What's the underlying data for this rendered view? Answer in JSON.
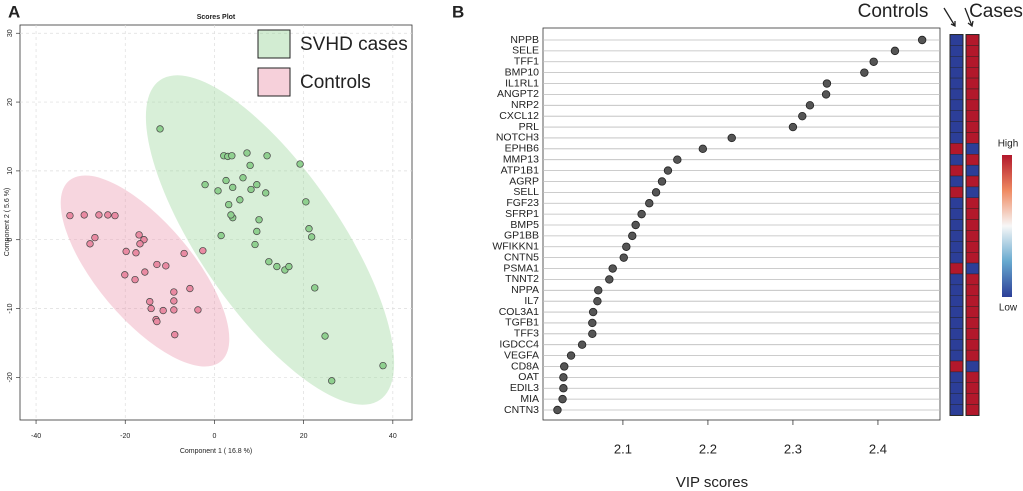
{
  "chart_data": [
    {
      "type": "scatter",
      "panel_label": "A",
      "title": "Scores Plot",
      "x_label": "Component 1 ( 16.8 %)",
      "y_label": "Component 2 ( 5.6 %)",
      "xlim": [
        -43.6,
        44.3
      ],
      "ylim": [
        -26.2,
        31.2
      ],
      "xticks": [
        -40,
        -20,
        0,
        20,
        40
      ],
      "yticks": [
        -20,
        -10,
        0,
        10,
        20,
        30
      ],
      "grid": true,
      "legend": "top-right",
      "series": [
        {
          "name": "SVHD cases",
          "color": "#8fd08f",
          "x": [
            -12.2,
            2.1,
            3.0,
            3.9,
            7.3,
            11.8,
            19.2,
            -2.1,
            6.4,
            8.0,
            2.6,
            4.1,
            8.2,
            9.5,
            0.8,
            5.7,
            11.5,
            3.2,
            4.1,
            10.0,
            20.5,
            21.2,
            21.8,
            3.7,
            9.5,
            9.1,
            1.5,
            12.2,
            14.0,
            15.8,
            16.7,
            22.5,
            24.8,
            26.3,
            37.8
          ],
          "values": [
            16.1,
            12.2,
            12.1,
            12.2,
            12.6,
            12.2,
            11.0,
            8.0,
            9.0,
            10.8,
            8.6,
            7.6,
            7.3,
            8.0,
            7.1,
            5.8,
            6.8,
            5.1,
            3.2,
            2.9,
            5.5,
            1.6,
            0.4,
            3.6,
            1.2,
            -0.7,
            0.6,
            -3.2,
            -3.9,
            -4.4,
            -3.9,
            -7.0,
            -14.0,
            -20.5,
            -18.3
          ]
        },
        {
          "name": "Controls",
          "color": "#e98aa2",
          "x": [
            -32.4,
            -29.2,
            -25.9,
            -23.9,
            -22.3,
            -26.8,
            -27.9,
            -16.9,
            -15.8,
            -16.7,
            -17.6,
            -19.8,
            -12.9,
            -6.8,
            -2.6,
            -10.9,
            -20.1,
            -15.6,
            -17.8,
            -14.5,
            -9.1,
            -9.1,
            -5.5,
            -13.1,
            -9.1,
            -14.2,
            -11.5,
            -3.7,
            -8.9,
            -12.9
          ],
          "values": [
            3.5,
            3.6,
            3.6,
            3.6,
            3.5,
            0.3,
            -0.6,
            0.7,
            0.0,
            -0.6,
            -1.9,
            -1.7,
            -3.6,
            -2.0,
            -1.6,
            -3.8,
            -5.1,
            -4.7,
            -5.8,
            -9.0,
            -7.6,
            -8.9,
            -7.1,
            -11.6,
            -10.2,
            -10.0,
            -10.3,
            -10.2,
            -13.8,
            -11.9
          ]
        }
      ]
    },
    {
      "type": "dot",
      "panel_label": "B",
      "x_label": "VIP scores",
      "color": "#555555",
      "categories": [
        "NPPB",
        "SELE",
        "TFF1",
        "BMP10",
        "IL1RL1",
        "ANGPT2",
        "NRP2",
        "CXCL12",
        "PRL",
        "NOTCH3",
        "EPHB6",
        "MMP13",
        "ATP1B1",
        "AGRP",
        "SELL",
        "FGF23",
        "SFRP1",
        "BMP5",
        "GP1BB",
        "WFIKKN1",
        "CNTN5",
        "PSMA1",
        "TNNT2",
        "NPPA",
        "IL7",
        "COL3A1",
        "TGFB1",
        "TFF3",
        "IGDCC4",
        "VEGFA",
        "CD8A",
        "OAT",
        "EDIL3",
        "MIA",
        "CNTN3"
      ],
      "values": [
        2.452,
        2.42,
        2.395,
        2.384,
        2.34,
        2.339,
        2.32,
        2.311,
        2.3,
        2.228,
        2.194,
        2.164,
        2.153,
        2.146,
        2.139,
        2.131,
        2.122,
        2.115,
        2.111,
        2.104,
        2.101,
        2.088,
        2.084,
        2.071,
        2.07,
        2.065,
        2.064,
        2.064,
        2.052,
        2.039,
        2.031,
        2.03,
        2.03,
        2.029,
        2.023
      ],
      "xlim": [
        2.006,
        2.473
      ],
      "xticks": [
        2.1,
        2.2,
        2.3,
        2.4
      ],
      "heatmap": {
        "columns": [
          "Controls",
          "Cases"
        ],
        "high_label": "High",
        "low_label": "Low",
        "high_color": "#b2182b",
        "low_color": "#2c3e98",
        "values": [
          [
            -1,
            1
          ],
          [
            -1,
            1
          ],
          [
            -1,
            1
          ],
          [
            -1,
            1
          ],
          [
            -1,
            1
          ],
          [
            -1,
            1
          ],
          [
            -1,
            1
          ],
          [
            -1,
            1
          ],
          [
            -1,
            1
          ],
          [
            -1,
            1
          ],
          [
            1,
            -1
          ],
          [
            -1,
            1
          ],
          [
            1,
            -1
          ],
          [
            -1,
            1
          ],
          [
            1,
            -1
          ],
          [
            -1,
            1
          ],
          [
            -1,
            1
          ],
          [
            -1,
            1
          ],
          [
            -1,
            1
          ],
          [
            -1,
            1
          ],
          [
            -1,
            1
          ],
          [
            1,
            -1
          ],
          [
            -1,
            1
          ],
          [
            -1,
            1
          ],
          [
            -1,
            1
          ],
          [
            -1,
            1
          ],
          [
            -1,
            1
          ],
          [
            -1,
            1
          ],
          [
            -1,
            1
          ],
          [
            -1,
            1
          ],
          [
            1,
            -1
          ],
          [
            -1,
            1
          ],
          [
            -1,
            1
          ],
          [
            -1,
            1
          ],
          [
            -1,
            1
          ]
        ]
      }
    }
  ]
}
